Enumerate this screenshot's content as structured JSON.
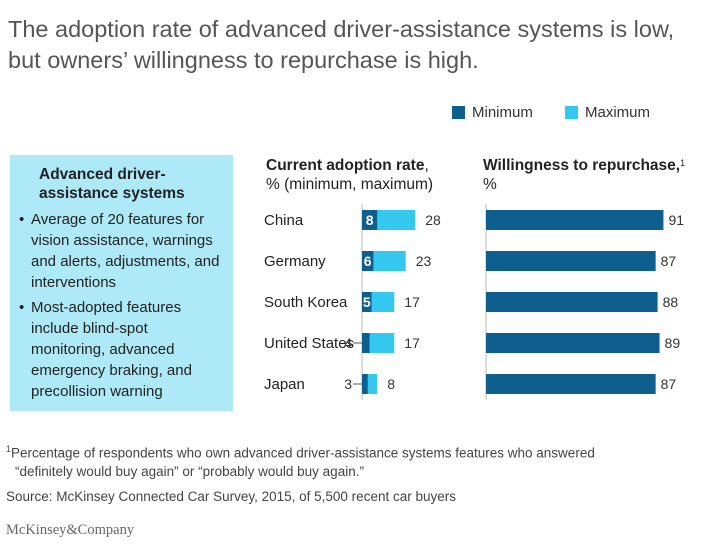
{
  "title": "The adoption rate of advanced driver-assistance systems is low, but owners’ willingness to repurchase is high.",
  "colors": {
    "minimum": "#0e5e8e",
    "maximum": "#35c8ef",
    "callout_bg": "#aee9f7"
  },
  "legend": {
    "minimum": "Minimum",
    "maximum": "Maximum"
  },
  "callout": {
    "title": "Advanced driver-assistance systems",
    "bullets": [
      "Average of 20 features for vision assistance, warnings and alerts, adjustments, and interventions",
      "Most-adopted features include blind-spot monitoring, advanced emergency braking, and precollision warning"
    ]
  },
  "adoption_header": {
    "bold": "Current adoption rate",
    "comma": ",",
    "sub": "% (minimum, maximum)"
  },
  "repurchase_header": {
    "bold": "Willingness to repurchase,",
    "sup": "1",
    "sub": "%"
  },
  "chart_data": [
    {
      "type": "bar",
      "orientation": "horizontal",
      "title": "Current adoption rate, % (minimum, maximum)",
      "categories": [
        "China",
        "Germany",
        "South Korea",
        "United States",
        "Japan"
      ],
      "series": [
        {
          "name": "Minimum",
          "values": [
            8,
            6,
            5,
            4,
            3
          ]
        },
        {
          "name": "Maximum",
          "values": [
            28,
            23,
            17,
            17,
            8
          ]
        }
      ],
      "xlim": [
        0,
        100
      ],
      "grid": false
    },
    {
      "type": "bar",
      "orientation": "horizontal",
      "title": "Willingness to repurchase, %",
      "categories": [
        "China",
        "Germany",
        "South Korea",
        "United States",
        "Japan"
      ],
      "values": [
        91,
        87,
        88,
        89,
        87
      ],
      "xlim": [
        0,
        100
      ],
      "grid": false
    }
  ],
  "footnote": {
    "mark": "1",
    "line1": "Percentage of respondents who own advanced driver-assistance systems features who answered",
    "line2": "“definitely would buy again” or “probably would buy again.”"
  },
  "source": "Source: McKinsey Connected Car Survey, 2015, of 5,500 recent car buyers",
  "logo": "McKinsey&Company"
}
